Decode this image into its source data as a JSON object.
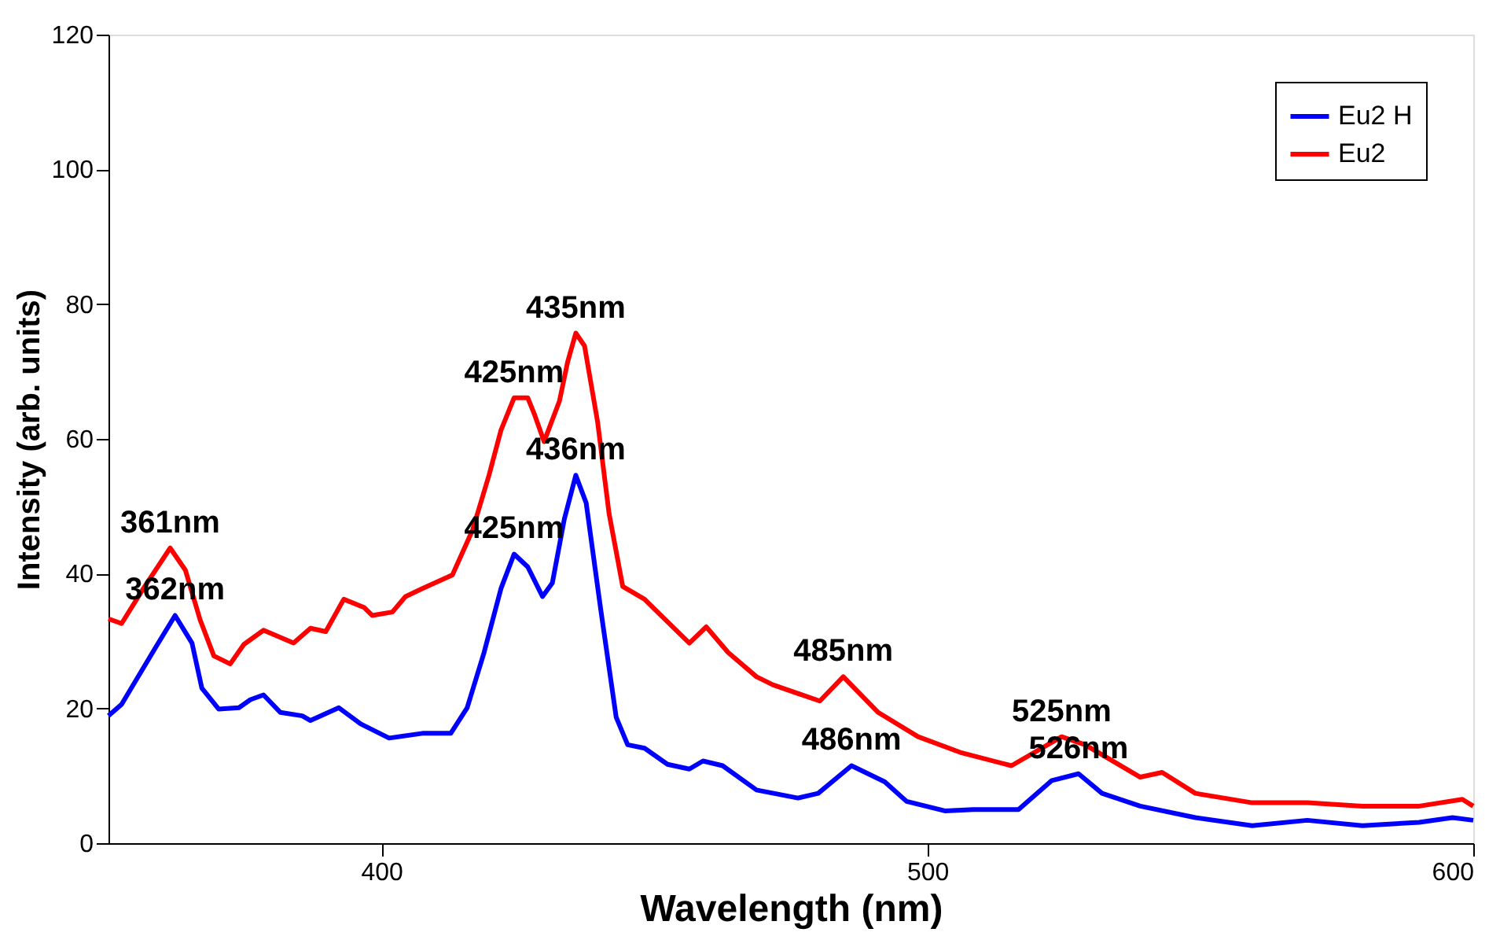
{
  "chart_data": {
    "type": "line",
    "xlabel": "Wavelength (nm)",
    "ylabel": "Intensity (arb. units)",
    "xlim": [
      350,
      600
    ],
    "ylim": [
      0,
      120
    ],
    "xticks": [
      400,
      500,
      600
    ],
    "yticks": [
      0,
      20,
      40,
      60,
      80,
      100,
      120
    ],
    "grid": false,
    "legend": "top right",
    "marker": "none",
    "line_style": "solid",
    "series": [
      {
        "name": "Eu2 H",
        "color": "#0000ff",
        "x": [
          350,
          352.4,
          358.6,
          362.2,
          365.3,
          367.1,
          370.2,
          373.9,
          376,
          378.4,
          381.5,
          385.5,
          387,
          392.2,
          396.2,
          401.4,
          407.5,
          412.7,
          415.7,
          418.8,
          421.9,
          424.3,
          426.8,
          429.5,
          431.3,
          433.5,
          435.6,
          437.5,
          440.2,
          443,
          445.1,
          448.2,
          452.4,
          456.4,
          458.9,
          462.5,
          468.7,
          476.3,
          480,
          486.1,
          492.2,
          496.2,
          503.2,
          508.4,
          516.7,
          522.8,
          527.7,
          532,
          539,
          549.1,
          559.5,
          569.6,
          579.7,
          590.1,
          596.2,
          600
        ],
        "values": [
          18.9,
          20.6,
          29,
          33.8,
          29.7,
          23,
          19.9,
          20.1,
          21.3,
          22,
          19.4,
          18.9,
          18.2,
          20.1,
          17.7,
          15.6,
          16.3,
          16.3,
          20.1,
          28.3,
          37.8,
          42.9,
          41,
          36.6,
          38.6,
          48.1,
          54.6,
          50.5,
          34.5,
          18.7,
          14.6,
          14.1,
          11.7,
          11,
          12.2,
          11.5,
          7.9,
          6.7,
          7.4,
          11.5,
          9.1,
          6.2,
          4.8,
          5,
          5,
          9.3,
          10.3,
          7.4,
          5.5,
          3.8,
          2.6,
          3.4,
          2.6,
          3.1,
          3.8,
          3.4
        ]
      },
      {
        "name": "Eu2",
        "color": "#ff0000",
        "x": [
          350,
          352.4,
          356.4,
          361.3,
          364.1,
          366.8,
          369.3,
          372.3,
          374.8,
          378.4,
          383.9,
          387,
          389.8,
          393.1,
          396.8,
          398.3,
          402,
          404.4,
          407.5,
          413,
          416.7,
          419.7,
          421.9,
          424.3,
          426.8,
          428,
          429.8,
          432.6,
          434.1,
          435.6,
          437.2,
          439.6,
          441.7,
          444.2,
          448.2,
          451.2,
          456.4,
          459.5,
          463.5,
          468.7,
          471.7,
          480.3,
          484.6,
          491,
          498.3,
          506.3,
          515.4,
          524.6,
          528.9,
          539,
          543,
          549.1,
          559.5,
          569.6,
          579.7,
          590.1,
          598,
          600
        ],
        "values": [
          33.3,
          32.6,
          37.8,
          43.8,
          40.5,
          33.1,
          27.8,
          26.6,
          29.5,
          31.6,
          29.7,
          31.9,
          31.4,
          36.2,
          35,
          33.8,
          34.3,
          36.6,
          37.8,
          39.8,
          46.5,
          54.6,
          61.3,
          66.1,
          66.1,
          63.7,
          59.6,
          65.6,
          71.4,
          75.7,
          73.8,
          62.5,
          48.9,
          38.1,
          36.2,
          33.8,
          29.7,
          32.1,
          28.3,
          24.7,
          23.5,
          21.1,
          24.7,
          19.4,
          15.8,
          13.4,
          11.5,
          15.8,
          14.6,
          9.8,
          10.5,
          7.4,
          6,
          6,
          5.5,
          5.5,
          6.5,
          5.5
        ]
      }
    ],
    "annotations": [
      {
        "text": "361nm",
        "x": 361.3,
        "y": 43.8
      },
      {
        "text": "362nm",
        "x": 362.2,
        "y": 33.8
      },
      {
        "text": "425nm",
        "x": 424.3,
        "y": 66.1
      },
      {
        "text": "435nm",
        "x": 435.6,
        "y": 75.7
      },
      {
        "text": "425nm",
        "x": 424.3,
        "y": 42.9
      },
      {
        "text": "436nm",
        "x": 435.6,
        "y": 54.6
      },
      {
        "text": "485nm",
        "x": 484.6,
        "y": 24.7
      },
      {
        "text": "486nm",
        "x": 486.1,
        "y": 11.5
      },
      {
        "text": "525nm",
        "x": 524.6,
        "y": 15.8
      },
      {
        "text": "526nm",
        "x": 527.7,
        "y": 10.3
      }
    ]
  }
}
